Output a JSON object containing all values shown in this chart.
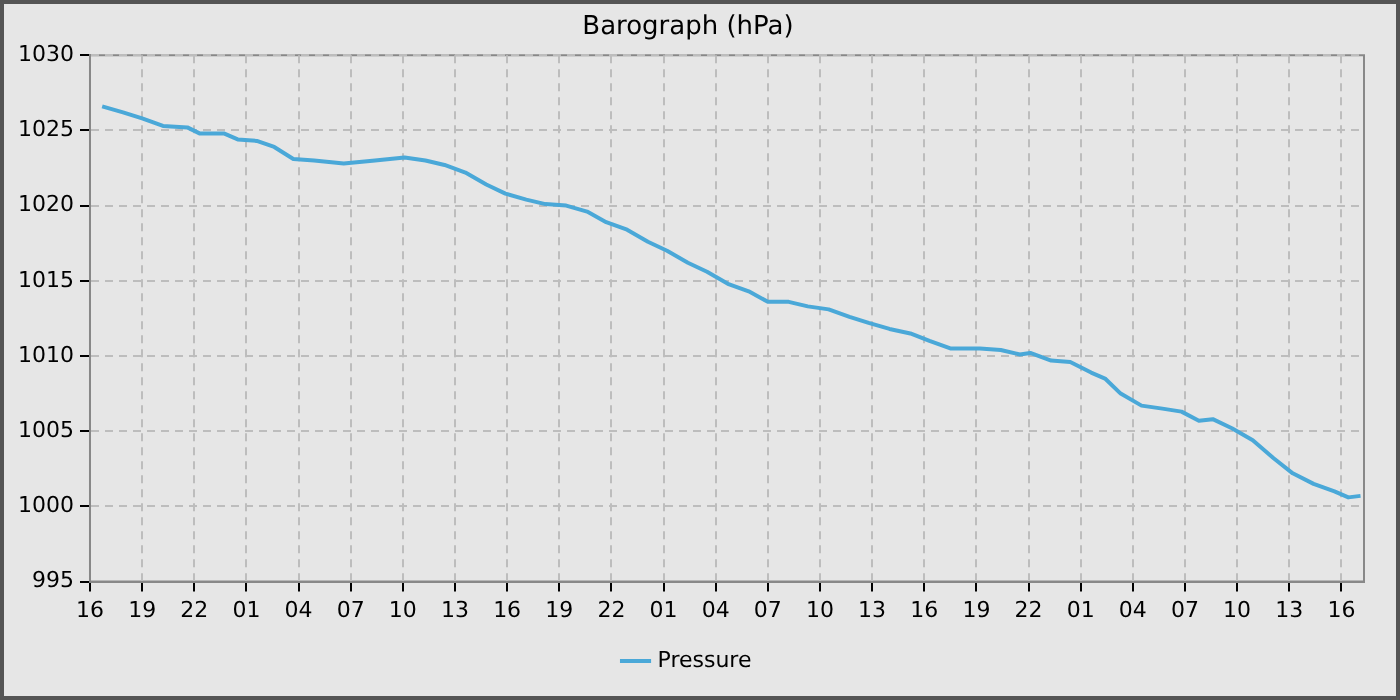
{
  "chart_data": {
    "type": "line",
    "title": "Barograph (hPa)",
    "x": [
      "--01-01T16:42",
      "--01-01T17:54",
      "--01-01T19:00",
      "--01-01T20:12",
      "--01-01T21:36",
      "--01-01T22:18",
      "--01-01T23:42",
      "--01-02T00:30",
      "--01-02T01:36",
      "--01-02T02:36",
      "--01-02T03:42",
      "--01-02T04:54",
      "--01-02T06:36",
      "--01-02T08:24",
      "--01-02T10:06",
      "--01-02T11:18",
      "--01-02T12:24",
      "--01-02T13:36",
      "--01-02T14:48",
      "--01-02T15:54",
      "--01-02T17:06",
      "--01-02T18:12",
      "--01-02T19:24",
      "--01-02T20:36",
      "--01-02T21:42",
      "--01-02T22:54",
      "--01-03T00:06",
      "--01-03T01:12",
      "--01-03T02:24",
      "--01-03T03:30",
      "--01-03T04:42",
      "--01-03T05:54",
      "--01-03T07:00",
      "--01-03T08:12",
      "--01-03T09:18",
      "--01-03T10:30",
      "--01-03T11:42",
      "--01-03T12:48",
      "--01-03T14:00",
      "--01-03T15:12",
      "--01-03T16:18",
      "--01-03T17:30",
      "--01-03T19:12",
      "--01-03T20:24",
      "--01-03T21:30",
      "--01-03T22:06",
      "--01-03T23:18",
      "--01-04T00:24",
      "--01-04T01:36",
      "--01-04T02:24",
      "--01-04T03:18",
      "--01-04T04:30",
      "--01-04T05:42",
      "--01-04T06:48",
      "--01-04T07:48",
      "--01-04T08:36",
      "--01-04T09:42",
      "--01-04T10:54",
      "--01-04T12:06",
      "--01-04T13:12",
      "--01-04T14:24",
      "--01-04T15:36",
      "--01-04T16:24",
      "--01-04T17:06"
    ],
    "series": [
      {
        "name": "Pressure",
        "color": "#4aa8d8",
        "values": [
          1026.6,
          1026.2,
          1025.8,
          1025.3,
          1025.2,
          1024.8,
          1024.8,
          1024.4,
          1024.3,
          1023.9,
          1023.1,
          1023.0,
          1022.8,
          1023.0,
          1023.2,
          1023.0,
          1022.7,
          1022.2,
          1021.4,
          1020.8,
          1020.4,
          1020.1,
          1020.0,
          1019.6,
          1018.9,
          1018.4,
          1017.6,
          1017.0,
          1016.2,
          1015.6,
          1014.8,
          1014.3,
          1013.6,
          1013.6,
          1013.3,
          1013.1,
          1012.6,
          1012.2,
          1011.8,
          1011.5,
          1011.0,
          1010.5,
          1010.5,
          1010.4,
          1010.1,
          1010.2,
          1009.7,
          1009.6,
          1008.9,
          1008.5,
          1007.5,
          1006.7,
          1006.5,
          1006.3,
          1005.7,
          1005.8,
          1005.2,
          1004.4,
          1003.2,
          1002.2,
          1001.5,
          1001.0,
          1000.6,
          1000.7
        ]
      }
    ],
    "xlim": [
      "--01-01T16:00",
      "--01-04T17:18"
    ],
    "xticks": [
      {
        "value": "--01-01T16:00",
        "label": "16"
      },
      {
        "value": "--01-01T19:00",
        "label": "19"
      },
      {
        "value": "--01-01T22:00",
        "label": "22"
      },
      {
        "value": "--01-02T01:00",
        "label": "01"
      },
      {
        "value": "--01-02T04:00",
        "label": "04"
      },
      {
        "value": "--01-02T07:00",
        "label": "07"
      },
      {
        "value": "--01-02T10:00",
        "label": "10"
      },
      {
        "value": "--01-02T13:00",
        "label": "13"
      },
      {
        "value": "--01-02T16:00",
        "label": "16"
      },
      {
        "value": "--01-02T19:00",
        "label": "19"
      },
      {
        "value": "--01-02T22:00",
        "label": "22"
      },
      {
        "value": "--01-03T01:00",
        "label": "01"
      },
      {
        "value": "--01-03T04:00",
        "label": "04"
      },
      {
        "value": "--01-03T07:00",
        "label": "07"
      },
      {
        "value": "--01-03T10:00",
        "label": "10"
      },
      {
        "value": "--01-03T13:00",
        "label": "13"
      },
      {
        "value": "--01-03T16:00",
        "label": "16"
      },
      {
        "value": "--01-03T19:00",
        "label": "19"
      },
      {
        "value": "--01-03T22:00",
        "label": "22"
      },
      {
        "value": "--01-04T01:00",
        "label": "01"
      },
      {
        "value": "--01-04T04:00",
        "label": "04"
      },
      {
        "value": "--01-04T07:00",
        "label": "07"
      },
      {
        "value": "--01-04T10:00",
        "label": "10"
      },
      {
        "value": "--01-04T13:00",
        "label": "13"
      },
      {
        "value": "--01-04T16:00",
        "label": "16"
      }
    ],
    "ylim": [
      995,
      1030
    ],
    "yticks": [
      995,
      1000,
      1005,
      1010,
      1015,
      1020,
      1025,
      1030
    ],
    "grid": true,
    "legend": "bottom",
    "marker": "none",
    "line_style": "solid"
  }
}
